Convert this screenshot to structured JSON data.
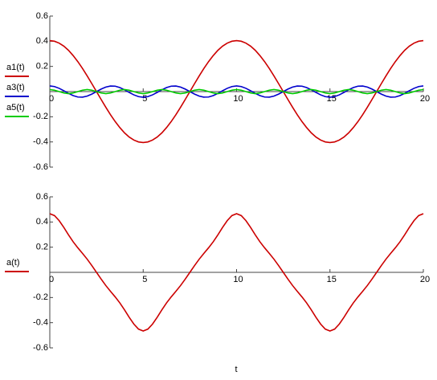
{
  "chart_data": [
    {
      "type": "line",
      "x": [
        0,
        0.25,
        0.5,
        0.75,
        1,
        1.25,
        1.5,
        1.75,
        2,
        2.25,
        2.5,
        2.75,
        3,
        3.25,
        3.5,
        3.75,
        4,
        4.25,
        4.5,
        4.75,
        5,
        5.25,
        5.5,
        5.75,
        6,
        6.25,
        6.5,
        6.75,
        7,
        7.25,
        7.5,
        7.75,
        8,
        8.25,
        8.5,
        8.75,
        9,
        9.25,
        9.5,
        9.75,
        10,
        10.25,
        10.5,
        10.75,
        11,
        11.25,
        11.5,
        11.75,
        12,
        12.25,
        12.5,
        12.75,
        13,
        13.25,
        13.5,
        13.75,
        14,
        14.25,
        14.5,
        14.75,
        15,
        15.25,
        15.5,
        15.75,
        16,
        16.25,
        16.5,
        16.75,
        17,
        17.25,
        17.5,
        17.75,
        18,
        18.25,
        18.5,
        18.75,
        19,
        19.25,
        19.5,
        19.75,
        20
      ],
      "series": [
        {
          "name": "a1(t)",
          "color": "#cc0000",
          "values": [
            0.405,
            0.4,
            0.385,
            0.361,
            0.328,
            0.286,
            0.238,
            0.184,
            0.125,
            0.063,
            0,
            -0.063,
            -0.125,
            -0.184,
            -0.238,
            -0.286,
            -0.328,
            -0.361,
            -0.385,
            -0.4,
            -0.405,
            -0.4,
            -0.385,
            -0.361,
            -0.328,
            -0.286,
            -0.238,
            -0.184,
            -0.125,
            -0.063,
            0,
            0.063,
            0.125,
            0.184,
            0.238,
            0.286,
            0.328,
            0.361,
            0.385,
            0.4,
            0.405,
            0.4,
            0.385,
            0.361,
            0.328,
            0.286,
            0.238,
            0.184,
            0.125,
            0.063,
            0,
            -0.063,
            -0.125,
            -0.184,
            -0.238,
            -0.286,
            -0.328,
            -0.361,
            -0.385,
            -0.4,
            -0.405,
            -0.4,
            -0.385,
            -0.361,
            -0.328,
            -0.286,
            -0.238,
            -0.184,
            -0.125,
            -0.063,
            0,
            0.063,
            0.125,
            0.184,
            0.238,
            0.286,
            0.328,
            0.361,
            0.385,
            0.4,
            0.405
          ]
        },
        {
          "name": "a3(t)",
          "color": "#0000cc",
          "values": [
            0.045,
            0.04,
            0.026,
            0.007,
            -0.014,
            -0.032,
            -0.043,
            -0.044,
            -0.036,
            -0.02,
            0,
            0.02,
            0.036,
            0.044,
            0.043,
            0.032,
            0.014,
            -0.007,
            -0.026,
            -0.04,
            -0.045,
            -0.04,
            -0.026,
            -0.007,
            0.014,
            0.032,
            0.043,
            0.044,
            0.036,
            0.02,
            0,
            -0.02,
            -0.036,
            -0.044,
            -0.043,
            -0.032,
            -0.014,
            0.007,
            0.026,
            0.04,
            0.045,
            0.04,
            0.026,
            0.007,
            -0.014,
            -0.032,
            -0.043,
            -0.044,
            -0.036,
            -0.02,
            0,
            0.02,
            0.036,
            0.044,
            0.043,
            0.032,
            0.014,
            -0.007,
            -0.026,
            -0.04,
            -0.045,
            -0.04,
            -0.026,
            -0.007,
            0.014,
            0.032,
            0.043,
            0.044,
            0.036,
            0.02,
            0,
            -0.02,
            -0.036,
            -0.044,
            -0.043,
            -0.032,
            -0.014,
            0.007,
            0.026,
            0.04,
            0.045
          ]
        },
        {
          "name": "a5(t)",
          "color": "#00cc00",
          "values": [
            0.016,
            0.011,
            0,
            -0.011,
            -0.016,
            -0.011,
            0,
            0.011,
            0.016,
            0.011,
            0,
            -0.011,
            -0.016,
            -0.011,
            0,
            0.011,
            0.016,
            0.011,
            0,
            -0.011,
            -0.016,
            -0.011,
            0,
            0.011,
            0.016,
            0.011,
            0,
            -0.011,
            -0.016,
            -0.011,
            0,
            0.011,
            0.016,
            0.011,
            0,
            -0.011,
            -0.016,
            -0.011,
            0,
            0.011,
            0.016,
            0.011,
            0,
            -0.011,
            -0.016,
            -0.011,
            0,
            0.011,
            0.016,
            0.011,
            0,
            -0.011,
            -0.016,
            -0.011,
            0,
            0.011,
            0.016,
            0.011,
            0,
            -0.011,
            -0.016,
            -0.011,
            0,
            0.011,
            0.016,
            0.011,
            0,
            -0.011,
            -0.016,
            -0.011,
            0,
            0.011,
            0.016,
            0.011,
            0,
            -0.011,
            -0.016,
            -0.011,
            0,
            0.011,
            0.016
          ]
        }
      ],
      "xlim": [
        0,
        20
      ],
      "xticks": [
        0,
        5,
        10,
        15,
        20
      ],
      "ylim": [
        -0.6,
        0.6
      ],
      "yticks": [
        -0.6,
        -0.4,
        -0.2,
        0.2,
        0.4,
        0.6
      ]
    },
    {
      "type": "line",
      "xlabel": "t",
      "x": [
        0,
        0.25,
        0.5,
        0.75,
        1,
        1.25,
        1.5,
        1.75,
        2,
        2.25,
        2.5,
        2.75,
        3,
        3.25,
        3.5,
        3.75,
        4,
        4.25,
        4.5,
        4.75,
        5,
        5.25,
        5.5,
        5.75,
        6,
        6.25,
        6.5,
        6.75,
        7,
        7.25,
        7.5,
        7.75,
        8,
        8.25,
        8.5,
        8.75,
        9,
        9.25,
        9.5,
        9.75,
        10,
        10.25,
        10.5,
        10.75,
        11,
        11.25,
        11.5,
        11.75,
        12,
        12.25,
        12.5,
        12.75,
        13,
        13.25,
        13.5,
        13.75,
        14,
        14.25,
        14.5,
        14.75,
        15,
        15.25,
        15.5,
        15.75,
        16,
        16.25,
        16.5,
        16.75,
        17,
        17.25,
        17.5,
        17.75,
        18,
        18.25,
        18.5,
        18.75,
        19,
        19.25,
        19.5,
        19.75,
        20
      ],
      "series": [
        {
          "name": "a(t)",
          "color": "#cc0000",
          "values": [
            0.466,
            0.451,
            0.411,
            0.357,
            0.298,
            0.243,
            0.195,
            0.151,
            0.105,
            0.054,
            0,
            -0.054,
            -0.105,
            -0.151,
            -0.195,
            -0.243,
            -0.298,
            -0.357,
            -0.411,
            -0.451,
            -0.466,
            -0.451,
            -0.411,
            -0.357,
            -0.298,
            -0.243,
            -0.195,
            -0.151,
            -0.105,
            -0.054,
            0,
            0.054,
            0.105,
            0.151,
            0.195,
            0.243,
            0.298,
            0.357,
            0.411,
            0.451,
            0.466,
            0.451,
            0.411,
            0.357,
            0.298,
            0.243,
            0.195,
            0.151,
            0.105,
            0.054,
            0,
            -0.054,
            -0.105,
            -0.151,
            -0.195,
            -0.243,
            -0.298,
            -0.357,
            -0.411,
            -0.451,
            -0.466,
            -0.451,
            -0.411,
            -0.357,
            -0.298,
            -0.243,
            -0.195,
            -0.151,
            -0.105,
            -0.054,
            0,
            0.054,
            0.105,
            0.151,
            0.195,
            0.243,
            0.298,
            0.357,
            0.411,
            0.451,
            0.466
          ]
        }
      ],
      "xlim": [
        0,
        20
      ],
      "xticks": [
        0,
        5,
        10,
        15,
        20
      ],
      "ylim": [
        -0.6,
        0.6
      ],
      "yticks": [
        -0.6,
        -0.4,
        -0.2,
        0.2,
        0.4,
        0.6
      ]
    }
  ]
}
